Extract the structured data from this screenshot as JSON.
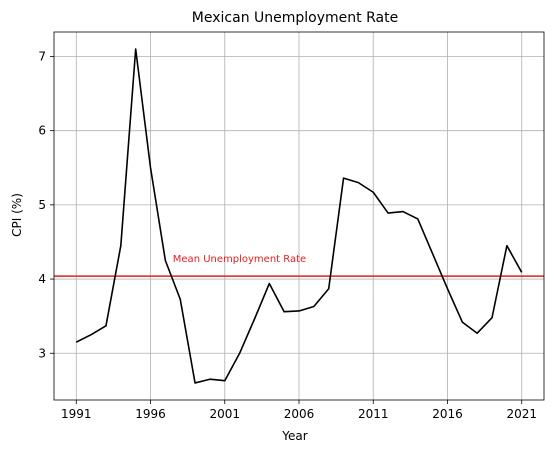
{
  "chart_data": {
    "type": "line",
    "title": "Mexican Unemployment Rate",
    "xlabel": "Year",
    "ylabel": "CPI (%)",
    "xlim": [
      1989.5,
      2022.5
    ],
    "ylim": [
      2.37,
      7.33
    ],
    "grid": true,
    "x_ticks": [
      1991,
      1996,
      2001,
      2006,
      2011,
      2016,
      2021
    ],
    "y_ticks": [
      3,
      4,
      5,
      6,
      7
    ],
    "series": [
      {
        "color": "#000000",
        "x": [
          1991,
          1992,
          1993,
          1994,
          1995,
          1996,
          1997,
          1998,
          1999,
          2000,
          2001,
          2002,
          2003,
          2004,
          2005,
          2006,
          2007,
          2008,
          2009,
          2010,
          2011,
          2012,
          2013,
          2014,
          2015,
          2016,
          2017,
          2018,
          2019,
          2020,
          2021
        ],
        "y": [
          3.15,
          3.25,
          3.37,
          4.45,
          7.1,
          5.5,
          4.25,
          3.73,
          2.6,
          2.65,
          2.63,
          3.0,
          3.46,
          3.94,
          3.56,
          3.57,
          3.63,
          3.87,
          5.36,
          5.3,
          5.17,
          4.89,
          4.91,
          4.81,
          4.34,
          3.87,
          3.42,
          3.27,
          3.48,
          4.45,
          4.09
        ]
      }
    ],
    "mean_line": {
      "value": 4.04,
      "label": "Mean Unemployment Rate",
      "color": "#e02020"
    }
  }
}
